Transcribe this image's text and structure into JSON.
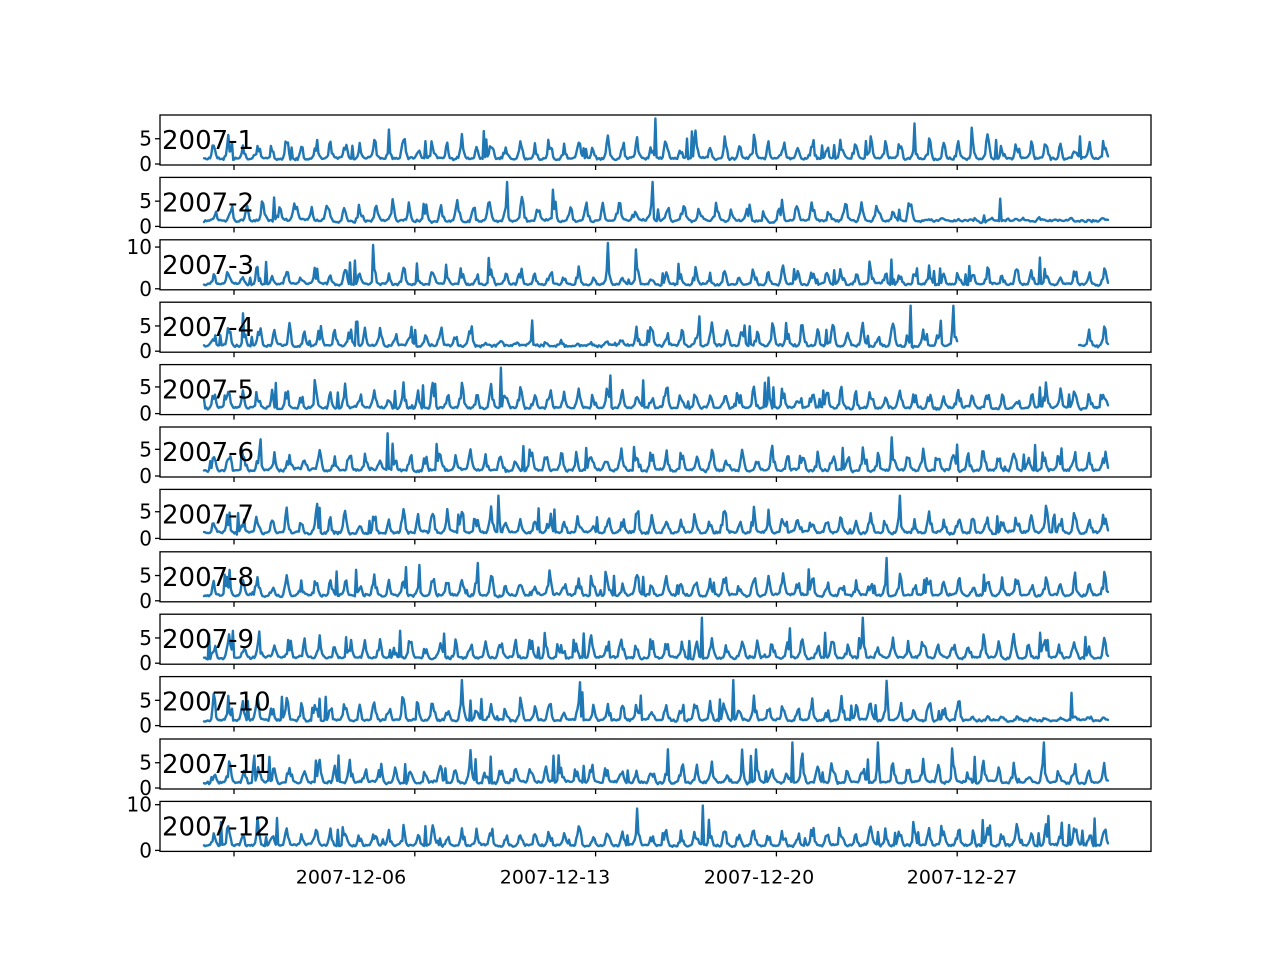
{
  "colors": {
    "series": "#1f77b4",
    "frame": "#000000",
    "background": "#ffffff"
  },
  "chart_data": {
    "type": "line",
    "layout": "12 vertically stacked subplots, one per month of 2007",
    "grid": false,
    "legend": "none",
    "x_tick_labels": [
      "2007-12-06",
      "2007-12-13",
      "2007-12-20",
      "2007-12-27"
    ],
    "panels": [
      {
        "label": "2007-1",
        "ylim": [
          0,
          9.5
        ],
        "yticks": [
          0,
          5
        ],
        "days": 31,
        "peak": 9.0
      },
      {
        "label": "2007-2",
        "ylim": [
          0,
          9.5
        ],
        "yticks": [
          0,
          5
        ],
        "days": 28,
        "peak": 8.8
      },
      {
        "label": "2007-3",
        "ylim": [
          0,
          11.5
        ],
        "yticks": [
          0,
          10
        ],
        "days": 31,
        "peak": 11.0
      },
      {
        "label": "2007-4",
        "ylim": [
          0,
          9.5
        ],
        "yticks": [
          0,
          5
        ],
        "days": 30,
        "peak": 9.0
      },
      {
        "label": "2007-5",
        "ylim": [
          0,
          9.0
        ],
        "yticks": [
          0,
          5
        ],
        "days": 31,
        "peak": 8.6
      },
      {
        "label": "2007-6",
        "ylim": [
          0,
          9.0
        ],
        "yticks": [
          0,
          5
        ],
        "days": 30,
        "peak": 8.0
      },
      {
        "label": "2007-7",
        "ylim": [
          0,
          9.0
        ],
        "yticks": [
          0,
          5
        ],
        "days": 31,
        "peak": 8.0
      },
      {
        "label": "2007-8",
        "ylim": [
          0,
          9.5
        ],
        "yticks": [
          0,
          5
        ],
        "days": 31,
        "peak": 8.5
      },
      {
        "label": "2007-9",
        "ylim": [
          0,
          9.5
        ],
        "yticks": [
          0,
          5
        ],
        "days": 30,
        "peak": 9.0
      },
      {
        "label": "2007-10",
        "ylim": [
          0,
          9.5
        ],
        "yticks": [
          0,
          5
        ],
        "days": 31,
        "peak": 9.0
      },
      {
        "label": "2007-11",
        "ylim": [
          0,
          9.5
        ],
        "yticks": [
          0,
          5
        ],
        "days": 30,
        "peak": 9.0
      },
      {
        "label": "2007-12",
        "ylim": [
          0,
          10.5
        ],
        "yticks": [
          0,
          10
        ],
        "days": 31,
        "peak": 9.8
      }
    ]
  }
}
